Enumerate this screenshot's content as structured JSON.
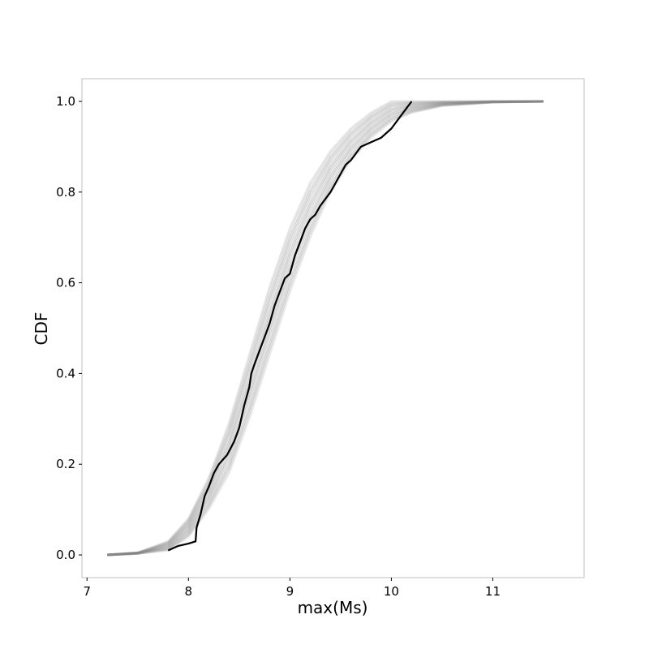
{
  "chart_data": {
    "type": "line",
    "title": "",
    "xlabel": "max(Ms)",
    "ylabel": "CDF",
    "xlim": [
      6.95,
      11.9
    ],
    "ylim": [
      -0.05,
      1.05
    ],
    "xticks": [
      7,
      8,
      9,
      10,
      11
    ],
    "yticks": [
      0.0,
      0.2,
      0.4,
      0.6,
      0.8,
      1.0
    ],
    "ytick_labels": [
      "0.0",
      "0.2",
      "0.4",
      "0.6",
      "0.8",
      "1.0"
    ],
    "grid": false,
    "legend": "none",
    "colors": {
      "simulated": "#808080",
      "observed": "#000000",
      "frame": "#bfbfbf"
    },
    "simulated_series_count": 14,
    "simulated_envelope": {
      "x": [
        7.2,
        7.5,
        7.8,
        8.0,
        8.2,
        8.4,
        8.6,
        8.8,
        9.0,
        9.2,
        9.4,
        9.6,
        9.8,
        10.0,
        10.2,
        10.5,
        11.0,
        11.5
      ],
      "lower": [
        0.0,
        0.003,
        0.01,
        0.04,
        0.1,
        0.18,
        0.3,
        0.44,
        0.58,
        0.7,
        0.8,
        0.87,
        0.92,
        0.955,
        0.975,
        0.99,
        0.998,
        1.0
      ],
      "upper": [
        0.0,
        0.005,
        0.03,
        0.08,
        0.17,
        0.29,
        0.44,
        0.59,
        0.72,
        0.82,
        0.89,
        0.94,
        0.975,
        1.0,
        1.0,
        1.0,
        1.0,
        1.0
      ]
    },
    "observed": {
      "x": [
        7.8,
        7.9,
        8.0,
        8.07,
        8.08,
        8.12,
        8.16,
        8.2,
        8.25,
        8.3,
        8.38,
        8.45,
        8.5,
        8.55,
        8.6,
        8.62,
        8.65,
        8.7,
        8.75,
        8.8,
        8.85,
        8.9,
        8.95,
        9.0,
        9.05,
        9.1,
        9.15,
        9.2,
        9.25,
        9.3,
        9.4,
        9.5,
        9.55,
        9.6,
        9.7,
        9.8,
        9.9,
        10.0,
        10.1,
        10.2
      ],
      "y": [
        0.01,
        0.02,
        0.025,
        0.03,
        0.06,
        0.09,
        0.13,
        0.15,
        0.18,
        0.2,
        0.22,
        0.25,
        0.28,
        0.33,
        0.37,
        0.4,
        0.42,
        0.45,
        0.48,
        0.51,
        0.55,
        0.58,
        0.61,
        0.62,
        0.66,
        0.69,
        0.72,
        0.74,
        0.75,
        0.77,
        0.8,
        0.84,
        0.86,
        0.87,
        0.9,
        0.91,
        0.92,
        0.94,
        0.97,
        1.0
      ]
    }
  }
}
